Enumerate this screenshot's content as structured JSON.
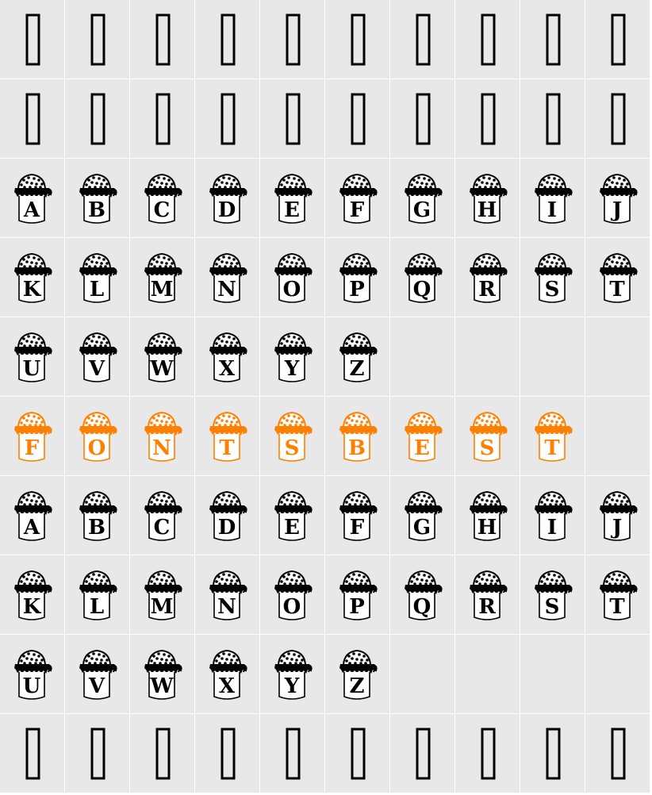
{
  "colors": {
    "cell_background": "#e8e8e8",
    "grid_line": "#ffffff",
    "glyph": "#000000",
    "highlight": "#ff7f00"
  },
  "rows": [
    {
      "kind": "missing",
      "cells": [
        "",
        "",
        "",
        "",
        "",
        "",
        "",
        "",
        "",
        ""
      ]
    },
    {
      "kind": "missing",
      "cells": [
        "",
        "",
        "",
        "",
        "",
        "",
        "",
        "",
        "",
        ""
      ]
    },
    {
      "kind": "jar",
      "color": "black",
      "cells": [
        "A",
        "B",
        "C",
        "D",
        "E",
        "F",
        "G",
        "H",
        "I",
        "J"
      ]
    },
    {
      "kind": "jar",
      "color": "black",
      "cells": [
        "K",
        "L",
        "M",
        "N",
        "O",
        "P",
        "Q",
        "R",
        "S",
        "T"
      ]
    },
    {
      "kind": "jar",
      "color": "black",
      "cells": [
        "U",
        "V",
        "W",
        "X",
        "Y",
        "Z",
        null,
        null,
        null,
        null
      ]
    },
    {
      "kind": "jar",
      "color": "orange",
      "cells": [
        "F",
        "O",
        "N",
        "T",
        "S",
        "B",
        "E",
        "S",
        "T",
        null
      ]
    },
    {
      "kind": "jar",
      "color": "black",
      "cells": [
        "A",
        "B",
        "C",
        "D",
        "E",
        "F",
        "G",
        "H",
        "I",
        "J"
      ]
    },
    {
      "kind": "jar",
      "color": "black",
      "cells": [
        "K",
        "L",
        "M",
        "N",
        "O",
        "P",
        "Q",
        "R",
        "S",
        "T"
      ]
    },
    {
      "kind": "jar",
      "color": "black",
      "cells": [
        "U",
        "V",
        "W",
        "X",
        "Y",
        "Z",
        null,
        null,
        null,
        null
      ]
    },
    {
      "kind": "missing",
      "cells": [
        "",
        "",
        "",
        "",
        "",
        "",
        "",
        "",
        "",
        ""
      ]
    }
  ]
}
